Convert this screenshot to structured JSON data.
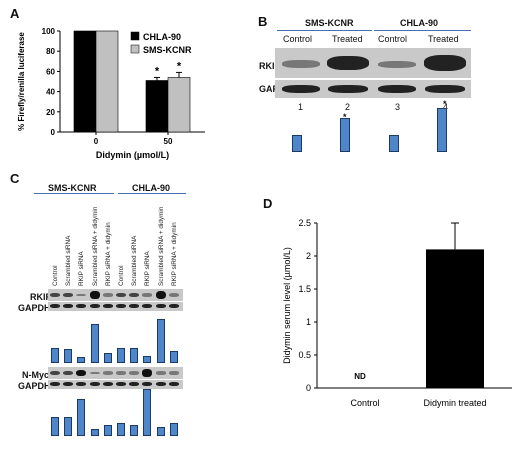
{
  "panels": {
    "a": "A",
    "b": "B",
    "c": "C",
    "d": "D"
  },
  "chart_data": [
    {
      "type": "bar",
      "title": "",
      "xlabel": "Didymin (µmol/L)",
      "ylabel": "% Firefly/renilla luciferase",
      "categories": [
        "0",
        "50"
      ],
      "ylim": [
        0,
        100
      ],
      "yticks": [
        "0",
        "20",
        "40",
        "60",
        "80",
        "100"
      ],
      "legend_position": "top-right",
      "series": [
        {
          "name": "CHLA-90",
          "values": [
            100,
            51
          ],
          "errors": [
            0,
            3
          ],
          "color": "#000000"
        },
        {
          "name": "SMS-KCNR",
          "values": [
            100,
            54
          ],
          "errors": [
            0,
            5
          ],
          "color": "#c0c0c0"
        }
      ],
      "annotations": [
        "*",
        "*"
      ]
    },
    {
      "type": "bar",
      "title": "",
      "xlabel": "",
      "ylabel": "Didymin serum level (µmol/L)",
      "categories": [
        "Control",
        "Didymin treated"
      ],
      "values": [
        0,
        2.1
      ],
      "errors": [
        0,
        0.4
      ],
      "ylim": [
        0,
        2.5
      ],
      "yticks": [
        "0",
        "0.5",
        "1",
        "1.5",
        "2",
        "2.5"
      ],
      "bar_color": "#000000",
      "annotations": [
        "ND"
      ]
    }
  ],
  "blot_b": {
    "group1": "SMS-KCNR",
    "group2": "CHLA-90",
    "conditions": [
      "Control",
      "Treated",
      "Control",
      "Treated"
    ],
    "row1": "RKIP",
    "row2": "GAPDH",
    "lanes": [
      "1",
      "2",
      "3",
      "4"
    ],
    "densitometry": [
      0.45,
      0.9,
      0.45,
      1.15
    ],
    "stars": [
      "*",
      "*"
    ]
  },
  "blot_c": {
    "group1": "SMS-KCNR",
    "group2": "CHLA-90",
    "lanes": [
      "Control",
      "Scrambled siRNA",
      "RKIP siRNA",
      "Scrambled siRNA + didymin",
      "RKIP siRNA + didymin",
      "Control",
      "Scrambled siRNA",
      "RKIP siRNA",
      "Scrambled siRNA + didymin",
      "RKIP siRNA + didymin"
    ],
    "row_rkip": "RKIP",
    "row_gapdh1": "GAPDH",
    "row_nmyc": "N-Myc",
    "row_gapdh2": "GAPDH",
    "rkip_densitometry": [
      0.38,
      0.35,
      0.14,
      1.0,
      0.26,
      0.38,
      0.37,
      0.17,
      1.12,
      0.3
    ],
    "nmyc_densitometry": [
      0.4,
      0.4,
      0.78,
      0.14,
      0.24,
      0.27,
      0.24,
      1.0,
      0.2,
      0.28
    ]
  }
}
